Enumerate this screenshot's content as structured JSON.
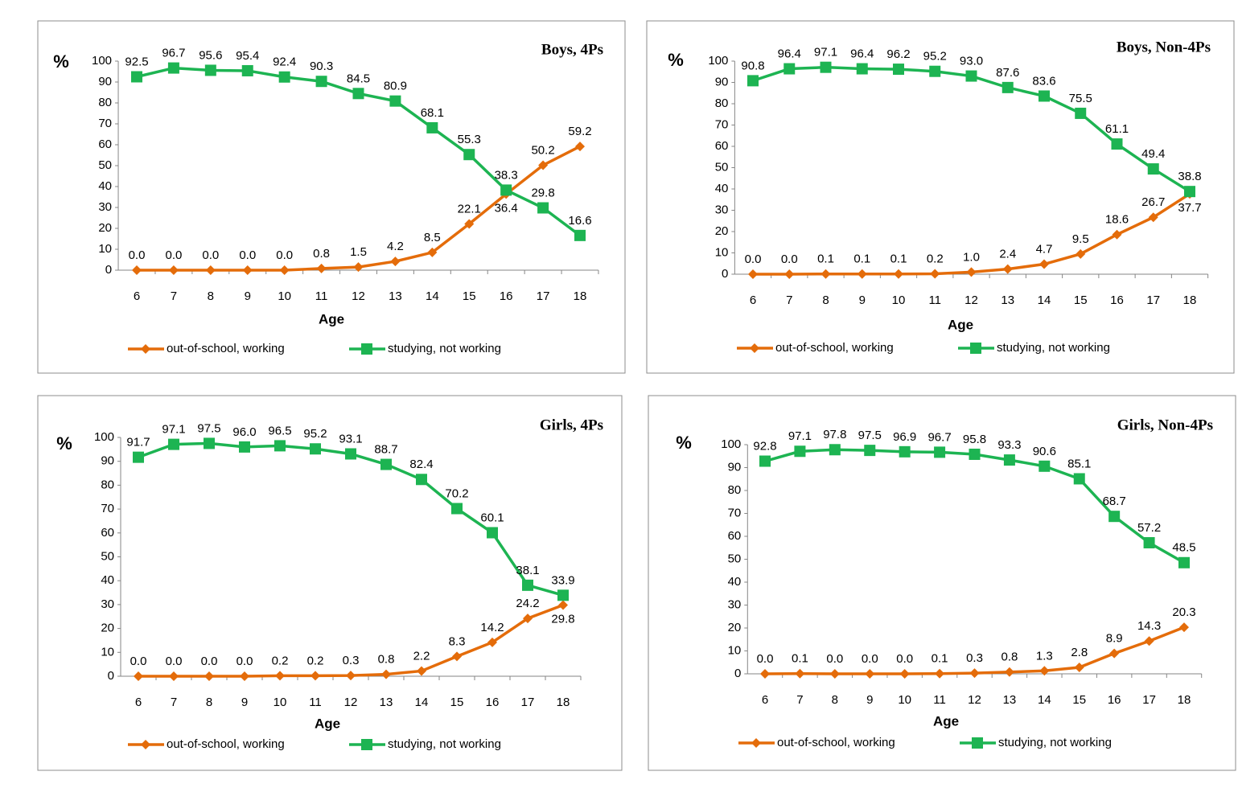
{
  "chart_data": [
    {
      "type": "line",
      "title": "Boys, 4Ps",
      "ylabel": "%",
      "xlabel": "Age",
      "categories": [
        6,
        7,
        8,
        9,
        10,
        11,
        12,
        13,
        14,
        15,
        16,
        17,
        18
      ],
      "ylim": [
        0,
        100
      ],
      "yticks": [
        0,
        10,
        20,
        30,
        40,
        50,
        60,
        70,
        80,
        90,
        100
      ],
      "series": [
        {
          "name": "out-of-school, working",
          "color": "#e46c0a",
          "marker": "diamond",
          "values": [
            0,
            0,
            0,
            0,
            0,
            0.8,
            1.5,
            4.2,
            8.5,
            22.1,
            36.4,
            50.2,
            59.2
          ],
          "value_labels": [
            "0.0",
            "0.0",
            "0.0",
            "0.0",
            "0.0",
            "0.8",
            "1.5",
            "4.2",
            "8.5",
            "22.1",
            "36.4",
            "50.2",
            "59.2"
          ]
        },
        {
          "name": "studying, not working",
          "color": "#1db452",
          "marker": "square",
          "values": [
            92.5,
            96.7,
            95.6,
            95.4,
            92.4,
            90.3,
            84.5,
            80.9,
            68.1,
            55.3,
            38.3,
            29.8,
            16.6
          ],
          "value_labels": [
            "92.5",
            "96.7",
            "95.6",
            "95.4",
            "92.4",
            "90.3",
            "84.5",
            "80.9",
            "68.1",
            "55.3",
            "38.3",
            "29.8",
            "16.6"
          ]
        }
      ]
    },
    {
      "type": "line",
      "title": "Boys, Non-4Ps",
      "ylabel": "%",
      "xlabel": "Age",
      "categories": [
        6,
        7,
        8,
        9,
        10,
        11,
        12,
        13,
        14,
        15,
        16,
        17,
        18
      ],
      "ylim": [
        0,
        100
      ],
      "yticks": [
        0,
        10,
        20,
        30,
        40,
        50,
        60,
        70,
        80,
        90,
        100
      ],
      "series": [
        {
          "name": "out-of-school, working",
          "color": "#e46c0a",
          "marker": "diamond",
          "values": [
            0,
            0,
            0.1,
            0.1,
            0.1,
            0.2,
            1.0,
            2.4,
            4.7,
            9.5,
            18.6,
            26.7,
            37.7
          ],
          "value_labels": [
            "0.0",
            "0.0",
            "0.1",
            "0.1",
            "0.1",
            "0.2",
            "1.0",
            "2.4",
            "4.7",
            "9.5",
            "18.6",
            "26.7",
            "37.7"
          ]
        },
        {
          "name": "studying, not working",
          "color": "#1db452",
          "marker": "square",
          "values": [
            90.8,
            96.4,
            97.1,
            96.4,
            96.2,
            95.2,
            93.0,
            87.6,
            83.6,
            75.5,
            61.1,
            49.4,
            38.8
          ],
          "value_labels": [
            "90.8",
            "96.4",
            "97.1",
            "96.4",
            "96.2",
            "95.2",
            "93.0",
            "87.6",
            "83.6",
            "75.5",
            "61.1",
            "49.4",
            "38.8"
          ]
        }
      ]
    },
    {
      "type": "line",
      "title": "Girls, 4Ps",
      "ylabel": "%",
      "xlabel": "Age",
      "categories": [
        6,
        7,
        8,
        9,
        10,
        11,
        12,
        13,
        14,
        15,
        16,
        17,
        18
      ],
      "ylim": [
        0,
        100
      ],
      "yticks": [
        0,
        10,
        20,
        30,
        40,
        50,
        60,
        70,
        80,
        90,
        100
      ],
      "series": [
        {
          "name": "out-of-school, working",
          "color": "#e46c0a",
          "marker": "diamond",
          "values": [
            0,
            0,
            0,
            0,
            0.2,
            0.2,
            0.3,
            0.8,
            2.2,
            8.3,
            14.2,
            24.2,
            29.8
          ],
          "value_labels": [
            "0.0",
            "0.0",
            "0.0",
            "0.0",
            "0.2",
            "0.2",
            "0.3",
            "0.8",
            "2.2",
            "8.3",
            "14.2",
            "24.2",
            "29.8"
          ]
        },
        {
          "name": "studying, not working",
          "color": "#1db452",
          "marker": "square",
          "values": [
            91.7,
            97.1,
            97.5,
            96.0,
            96.5,
            95.2,
            93.1,
            88.7,
            82.4,
            70.2,
            60.1,
            38.1,
            33.9
          ],
          "value_labels": [
            "91.7",
            "97.1",
            "97.5",
            "96.0",
            "96.5",
            "95.2",
            "93.1",
            "88.7",
            "82.4",
            "70.2",
            "60.1",
            "38.1",
            "33.9"
          ]
        }
      ]
    },
    {
      "type": "line",
      "title": "Girls, Non-4Ps",
      "ylabel": "%",
      "xlabel": "Age",
      "categories": [
        6,
        7,
        8,
        9,
        10,
        11,
        12,
        13,
        14,
        15,
        16,
        17,
        18
      ],
      "ylim": [
        0,
        100
      ],
      "yticks": [
        0,
        10,
        20,
        30,
        40,
        50,
        60,
        70,
        80,
        90,
        100
      ],
      "series": [
        {
          "name": "out-of-school, working",
          "color": "#e46c0a",
          "marker": "diamond",
          "values": [
            0,
            0.1,
            0,
            0,
            0,
            0.1,
            0.3,
            0.8,
            1.3,
            2.8,
            8.9,
            14.3,
            20.3
          ],
          "value_labels": [
            "0.0",
            "0.1",
            "0.0",
            "0.0",
            "0.0",
            "0.1",
            "0.3",
            "0.8",
            "1.3",
            "2.8",
            "8.9",
            "14.3",
            "20.3"
          ]
        },
        {
          "name": "studying, not working",
          "color": "#1db452",
          "marker": "square",
          "values": [
            92.8,
            97.1,
            97.8,
            97.5,
            96.9,
            96.7,
            95.8,
            93.3,
            90.6,
            85.1,
            68.7,
            57.2,
            48.5
          ],
          "value_labels": [
            "92.8",
            "97.1",
            "97.8",
            "97.5",
            "96.9",
            "96.7",
            "95.8",
            "93.3",
            "90.6",
            "85.1",
            "68.7",
            "57.2",
            "48.5"
          ]
        }
      ]
    }
  ]
}
